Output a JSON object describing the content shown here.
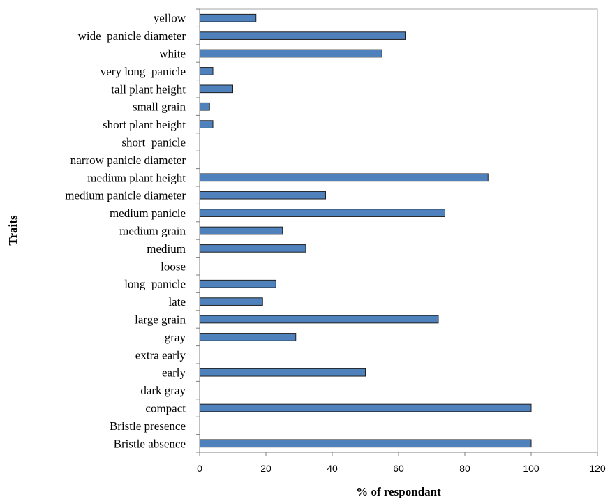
{
  "chart_data": {
    "type": "bar",
    "orientation": "horizontal",
    "title": "",
    "xlabel": "% of respondant",
    "ylabel": "Traits",
    "xlim": [
      0,
      120
    ],
    "xticks": [
      0,
      20,
      40,
      60,
      80,
      100,
      120
    ],
    "grid": false,
    "legend": "none",
    "bar_color": "#4f81bd",
    "categories": [
      "Bristle absence",
      "Bristle presence",
      "compact",
      "dark gray",
      "early",
      "extra early",
      "gray",
      "large grain",
      "late",
      "long  panicle",
      "loose",
      "medium",
      "medium grain",
      "medium panicle",
      "medium panicle diameter",
      "medium plant height",
      "narrow panicle diameter",
      "short  panicle",
      "short plant height",
      "small grain",
      "tall plant height",
      "very long  panicle",
      "white",
      "wide  panicle diameter",
      "yellow"
    ],
    "values": [
      100,
      0,
      100,
      0,
      50,
      0,
      29,
      72,
      19,
      23,
      0,
      32,
      25,
      74,
      38,
      87,
      0,
      0,
      4,
      3,
      10,
      4,
      55,
      62,
      17
    ]
  }
}
